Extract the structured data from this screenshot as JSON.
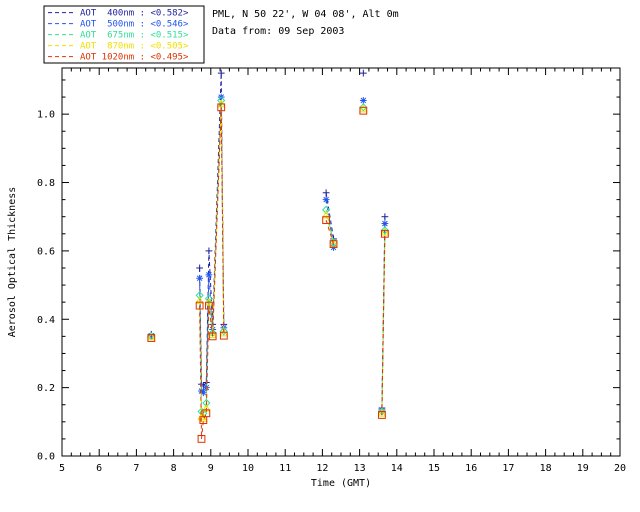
{
  "window": {
    "background": "#ffffff",
    "frame_color": "#000000"
  },
  "header": {
    "station": "PML, N 50 22', W 04 08', Alt 0m",
    "date": "Data from: 09 Sep 2003"
  },
  "chart_data": {
    "type": "scatter",
    "title": "PML, N 50 22', W 04 08', Alt 0m",
    "subtitle": "Data from: 09 Sep 2003",
    "xlabel": "Time (GMT)",
    "ylabel": "Aerosol Optical Thickness",
    "xlim": [
      5,
      20
    ],
    "ylim": [
      0,
      1.135
    ],
    "xticks": [
      5,
      6,
      7,
      8,
      9,
      10,
      11,
      12,
      13,
      14,
      15,
      16,
      17,
      18,
      19,
      20
    ],
    "yticks": [
      0.0,
      0.2,
      0.4,
      0.6,
      0.8,
      1.0
    ],
    "x_minor_step": 0.25,
    "y_minor_step": 0.05,
    "grid": false,
    "legend_position": "top-left",
    "line_style": "dashed",
    "series": [
      {
        "id": "aot-400nm",
        "name": "AOT  400nm",
        "mean": "<0.582>",
        "color": "#1f1f9e",
        "marker": "plus",
        "points": [
          [
            7.4,
            0.356
          ],
          null,
          [
            8.7,
            0.55
          ],
          [
            8.75,
            0.21
          ],
          [
            8.8,
            0.205
          ],
          [
            8.88,
            0.215
          ],
          [
            8.95,
            0.6
          ],
          [
            9.05,
            0.385
          ],
          [
            9.28,
            1.12
          ],
          [
            9.35,
            0.385
          ],
          null,
          [
            12.1,
            0.77
          ],
          [
            12.3,
            0.635
          ],
          null,
          [
            13.1,
            1.12
          ],
          null,
          [
            13.6,
            0.14
          ],
          [
            13.68,
            0.7
          ]
        ]
      },
      {
        "id": "aot-500nm",
        "name": "AOT  500nm",
        "mean": "<0.546>",
        "color": "#2255ee",
        "marker": "asterisk",
        "points": [
          [
            7.4,
            0.352
          ],
          null,
          [
            8.7,
            0.52
          ],
          [
            8.75,
            0.19
          ],
          [
            8.8,
            0.185
          ],
          [
            8.88,
            0.2
          ],
          [
            8.95,
            0.53
          ],
          [
            9.05,
            0.37
          ],
          [
            9.28,
            1.05
          ],
          [
            9.35,
            0.375
          ],
          null,
          [
            12.1,
            0.75
          ],
          [
            12.3,
            0.61
          ],
          null,
          [
            13.1,
            1.04
          ],
          null,
          [
            13.6,
            0.135
          ],
          [
            13.68,
            0.68
          ]
        ]
      },
      {
        "id": "aot-675nm",
        "name": "AOT  675nm",
        "mean": "<0.515>",
        "color": "#30e096",
        "marker": "diamond",
        "points": [
          [
            7.4,
            0.35
          ],
          null,
          [
            8.7,
            0.47
          ],
          [
            8.75,
            0.13
          ],
          [
            8.8,
            0.125
          ],
          [
            8.88,
            0.155
          ],
          [
            8.95,
            0.46
          ],
          [
            9.05,
            0.36
          ],
          [
            9.28,
            1.04
          ],
          [
            9.35,
            0.365
          ],
          null,
          [
            12.1,
            0.72
          ],
          [
            12.3,
            0.625
          ],
          null,
          [
            13.1,
            1.02
          ],
          null,
          [
            13.6,
            0.13
          ],
          [
            13.68,
            0.66
          ]
        ]
      },
      {
        "id": "aot-870nm",
        "name": "AOT  870nm",
        "mean": "<0.505>",
        "color": "#f0e000",
        "marker": "triangle",
        "points": [
          [
            7.4,
            0.348
          ],
          null,
          [
            8.7,
            0.455
          ],
          [
            8.75,
            0.115
          ],
          [
            8.8,
            0.11
          ],
          [
            8.88,
            0.14
          ],
          [
            8.95,
            0.45
          ],
          [
            9.05,
            0.355
          ],
          [
            9.28,
            1.03
          ],
          [
            9.35,
            0.36
          ],
          null,
          [
            12.1,
            0.705
          ],
          [
            12.3,
            0.62
          ],
          null,
          [
            13.1,
            1.015
          ],
          null,
          [
            13.6,
            0.125
          ],
          [
            13.68,
            0.655
          ]
        ]
      },
      {
        "id": "aot-1020nm",
        "name": "AOT 1020nm",
        "mean": "<0.495>",
        "color": "#dd3300",
        "marker": "square",
        "points": [
          [
            7.4,
            0.345
          ],
          null,
          [
            8.7,
            0.44
          ],
          [
            8.75,
            0.05
          ],
          [
            8.8,
            0.105
          ],
          [
            8.88,
            0.125
          ],
          [
            8.95,
            0.44
          ],
          [
            9.05,
            0.35
          ],
          [
            9.28,
            1.02
          ],
          [
            9.35,
            0.352
          ],
          null,
          [
            12.1,
            0.69
          ],
          [
            12.3,
            0.62
          ],
          null,
          [
            13.1,
            1.01
          ],
          null,
          [
            13.6,
            0.12
          ],
          [
            13.68,
            0.65
          ]
        ]
      }
    ]
  }
}
